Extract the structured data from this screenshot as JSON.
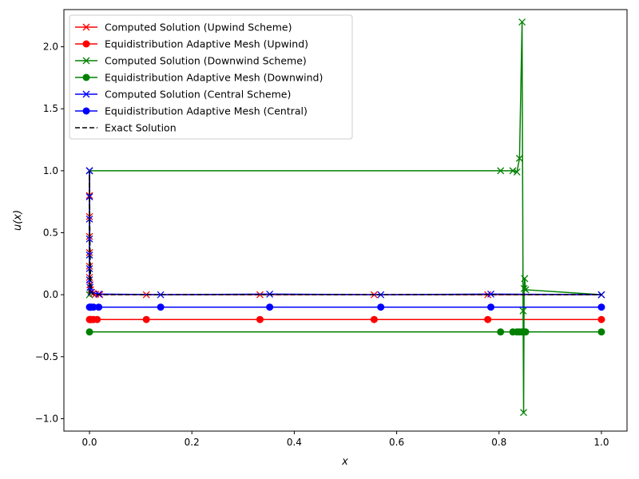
{
  "chart_data": {
    "type": "line",
    "xlabel": "x",
    "ylabel": "u(x)",
    "xlim": [
      -0.05,
      1.05
    ],
    "ylim": [
      -1.1,
      2.3
    ],
    "xticks": [
      0.0,
      0.2,
      0.4,
      0.6,
      0.8,
      1.0
    ],
    "xtick_labels": [
      "0.0",
      "0.2",
      "0.4",
      "0.6",
      "0.8",
      "1.0"
    ],
    "yticks": [
      -1.0,
      -0.5,
      0.0,
      0.5,
      1.0,
      1.5,
      2.0
    ],
    "ytick_labels": [
      "−1.0",
      "−0.5",
      "0.0",
      "0.5",
      "1.0",
      "1.5",
      "2.0"
    ],
    "grid": false,
    "legend_position": "top-left",
    "series": [
      {
        "name": "Computed Solution (Upwind Scheme)",
        "color": "#ff0000",
        "marker": "x",
        "dashed": false,
        "x": [
          0.0,
          0.0,
          0.0,
          0.0,
          0.0,
          0.0,
          0.0,
          0.001,
          0.002,
          0.004,
          0.007,
          0.012,
          0.02,
          0.111,
          0.333,
          0.556,
          0.778,
          1.0
        ],
        "y": [
          1.0,
          0.8,
          0.63,
          0.47,
          0.34,
          0.23,
          0.14,
          0.08,
          0.04,
          0.02,
          0.01,
          0.005,
          0.002,
          0.0,
          0.0,
          0.0,
          0.0,
          0.0
        ]
      },
      {
        "name": "Equidistribution Adaptive Mesh (Upwind)",
        "color": "#ff0000",
        "marker": "o",
        "dashed": false,
        "x": [
          0.0,
          0.001,
          0.002,
          0.004,
          0.008,
          0.015,
          0.111,
          0.333,
          0.556,
          0.778,
          1.0
        ],
        "y": [
          -0.2,
          -0.2,
          -0.2,
          -0.2,
          -0.2,
          -0.2,
          -0.2,
          -0.2,
          -0.2,
          -0.2,
          -0.2
        ]
      },
      {
        "name": "Computed Solution (Downwind Scheme)",
        "color": "#008000",
        "marker": "x",
        "dashed": false,
        "x": [
          0.0,
          0.0,
          0.803,
          0.827,
          0.835,
          0.84,
          0.845,
          0.847,
          0.848,
          0.849,
          0.85,
          0.852,
          1.0
        ],
        "y": [
          0.0,
          1.0,
          1.0,
          1.0,
          0.99,
          1.1,
          2.2,
          -0.13,
          -0.95,
          0.05,
          0.13,
          0.04,
          0.0
        ]
      },
      {
        "name": "Equidistribution Adaptive Mesh (Downwind)",
        "color": "#008000",
        "marker": "o",
        "dashed": false,
        "x": [
          0.0,
          0.803,
          0.827,
          0.835,
          0.84,
          0.845,
          0.847,
          0.849,
          0.852,
          1.0
        ],
        "y": [
          -0.3,
          -0.3,
          -0.3,
          -0.3,
          -0.3,
          -0.3,
          -0.3,
          -0.3,
          -0.3,
          -0.3
        ]
      },
      {
        "name": "Computed Solution (Central Scheme)",
        "color": "#0000ff",
        "marker": "x",
        "dashed": false,
        "x": [
          0.0,
          0.0,
          0.0,
          0.0,
          0.0,
          0.0,
          0.0,
          0.001,
          0.003,
          0.018,
          0.139,
          0.352,
          0.569,
          0.784,
          1.0
        ],
        "y": [
          1.0,
          0.79,
          0.61,
          0.45,
          0.32,
          0.21,
          0.12,
          0.06,
          0.02,
          0.005,
          0.0,
          0.005,
          0.0,
          0.005,
          0.0
        ]
      },
      {
        "name": "Equidistribution Adaptive Mesh (Central)",
        "color": "#0000ff",
        "marker": "o",
        "dashed": false,
        "x": [
          0.0,
          0.001,
          0.002,
          0.004,
          0.008,
          0.018,
          0.139,
          0.352,
          0.569,
          0.784,
          1.0
        ],
        "y": [
          -0.1,
          -0.1,
          -0.1,
          -0.1,
          -0.1,
          -0.1,
          -0.1,
          -0.1,
          -0.1,
          -0.1,
          -0.1
        ]
      },
      {
        "name": "Exact Solution",
        "color": "#000000",
        "marker": "none",
        "dashed": true,
        "x": [
          0.0,
          0.0,
          0.0005,
          0.001,
          0.002,
          0.004,
          0.008,
          0.02,
          0.1,
          1.0
        ],
        "y": [
          0.0,
          1.0,
          0.6,
          0.37,
          0.14,
          0.02,
          0.0,
          0.0,
          0.0,
          0.0
        ]
      }
    ]
  }
}
